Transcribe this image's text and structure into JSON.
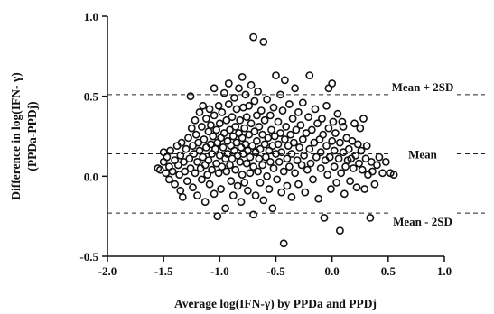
{
  "chart_data": {
    "type": "scatter",
    "title": "",
    "xlabel": "Average log(IFN-γ) by PPDa and PPDj",
    "ylabel_line1": "Difference in log(IFN- γ)",
    "ylabel_line2": "(PPDa-PPDj)",
    "xlim": [
      -2.0,
      1.0
    ],
    "ylim": [
      -0.5,
      1.0
    ],
    "xticks": [
      -2.0,
      -1.5,
      -1.0,
      -0.5,
      0.0,
      0.5,
      1.0
    ],
    "xtick_labels": [
      "-2.0",
      "-1.5",
      "-1.0",
      "-0.5",
      "0.0",
      "0.5",
      "1.0"
    ],
    "yticks": [
      -0.5,
      0.0,
      0.5,
      1.0
    ],
    "ytick_labels": [
      "-0.5",
      "0.0",
      "0.5",
      "1.0"
    ],
    "grid": false,
    "marker": "open-circle",
    "reference_lines": [
      {
        "label": "Mean + 2SD",
        "y": 0.51
      },
      {
        "label": "Mean",
        "y": 0.14
      },
      {
        "label": "Mean - 2SD",
        "y": -0.23
      }
    ],
    "points": [
      [
        -1.55,
        0.05
      ],
      [
        -1.53,
        0.04
      ],
      [
        -1.5,
        0.09
      ],
      [
        -1.5,
        0.15
      ],
      [
        -1.48,
        0.02
      ],
      [
        -1.47,
        0.12
      ],
      [
        -1.45,
        0.06
      ],
      [
        -1.45,
        -0.02
      ],
      [
        -1.44,
        0.16
      ],
      [
        -1.42,
        0.03
      ],
      [
        -1.4,
        0.1
      ],
      [
        -1.4,
        -0.05
      ],
      [
        -1.38,
        0.19
      ],
      [
        -1.37,
        0.07
      ],
      [
        -1.36,
        0.01
      ],
      [
        -1.35,
        0.13
      ],
      [
        -1.35,
        -0.09
      ],
      [
        -1.34,
        0.21
      ],
      [
        -1.33,
        -0.13
      ],
      [
        -1.32,
        0.09
      ],
      [
        -1.31,
        0.03
      ],
      [
        -1.3,
        0.17
      ],
      [
        -1.29,
        -0.03
      ],
      [
        -1.28,
        0.24
      ],
      [
        -1.27,
        0.11
      ],
      [
        -1.26,
        0.05
      ],
      [
        -1.26,
        0.5
      ],
      [
        -1.25,
        0.3
      ],
      [
        -1.24,
        0.19
      ],
      [
        -1.24,
        -0.07
      ],
      [
        -1.23,
        0.14
      ],
      [
        -1.22,
        0.02
      ],
      [
        -1.22,
        0.35
      ],
      [
        -1.21,
        0.26
      ],
      [
        -1.2,
        0.09
      ],
      [
        -1.2,
        -0.12
      ],
      [
        -1.19,
        0.21
      ],
      [
        -1.18,
        0.4
      ],
      [
        -1.18,
        0.16
      ],
      [
        -1.17,
        0.05
      ],
      [
        -1.16,
        0.31
      ],
      [
        -1.16,
        -0.02
      ],
      [
        -1.15,
        0.12
      ],
      [
        -1.15,
        0.44
      ],
      [
        -1.14,
        0.23
      ],
      [
        -1.13,
        0.07
      ],
      [
        -1.13,
        -0.16
      ],
      [
        -1.12,
        0.36
      ],
      [
        -1.12,
        0.18
      ],
      [
        -1.11,
        0.01
      ],
      [
        -1.1,
        0.28
      ],
      [
        -1.1,
        0.1
      ],
      [
        -1.09,
        0.42
      ],
      [
        -1.09,
        -0.05
      ],
      [
        -1.08,
        0.2
      ],
      [
        -1.08,
        0.32
      ],
      [
        -1.07,
        0.14
      ],
      [
        -1.07,
        0.04
      ],
      [
        -1.06,
        0.25
      ],
      [
        -1.05,
        -0.11
      ],
      [
        -1.05,
        0.38
      ],
      [
        -1.05,
        0.55
      ],
      [
        -1.04,
        0.17
      ],
      [
        -1.03,
        0.08
      ],
      [
        -1.03,
        0.29
      ],
      [
        -1.02,
        -0.25
      ],
      [
        -1.02,
        0.21
      ],
      [
        -1.01,
        0.44
      ],
      [
        -1.01,
        0.02
      ],
      [
        -1.0,
        0.13
      ],
      [
        -1.0,
        0.33
      ],
      [
        -0.99,
        0.24
      ],
      [
        -0.99,
        -0.08
      ],
      [
        -0.98,
        0.06
      ],
      [
        -0.98,
        0.4
      ],
      [
        -0.97,
        0.18
      ],
      [
        -0.96,
        0.27
      ],
      [
        -0.96,
        0.52
      ],
      [
        -0.95,
        0.11
      ],
      [
        -0.95,
        -0.2
      ],
      [
        -0.94,
        0.35
      ],
      [
        -0.94,
        0.03
      ],
      [
        -0.93,
        0.22
      ],
      [
        -0.93,
        0.14
      ],
      [
        -0.92,
        0.58
      ],
      [
        -0.92,
        0.45
      ],
      [
        -0.91,
        0.29
      ],
      [
        -0.91,
        0.07
      ],
      [
        -0.9,
        -0.03
      ],
      [
        -0.9,
        0.19
      ],
      [
        -0.89,
        0.37
      ],
      [
        -0.89,
        0.11
      ],
      [
        -0.88,
        0.25
      ],
      [
        -0.88,
        -0.12
      ],
      [
        -0.87,
        0.49
      ],
      [
        -0.87,
        0.16
      ],
      [
        -0.86,
        0.31
      ],
      [
        -0.86,
        0.04
      ],
      [
        -0.85,
        0.21
      ],
      [
        -0.85,
        0.42
      ],
      [
        -0.84,
        0.13
      ],
      [
        -0.84,
        -0.06
      ],
      [
        -0.83,
        0.27
      ],
      [
        -0.83,
        0.55
      ],
      [
        -0.82,
        0.09
      ],
      [
        -0.82,
        0.35
      ],
      [
        -0.81,
        0.18
      ],
      [
        -0.81,
        -0.16
      ],
      [
        -0.8,
        0.62
      ],
      [
        -0.8,
        0.24
      ],
      [
        -0.8,
        0.01
      ],
      [
        -0.79,
        0.43
      ],
      [
        -0.79,
        0.14
      ],
      [
        -0.78,
        0.3
      ],
      [
        -0.78,
        -0.04
      ],
      [
        -0.77,
        0.2
      ],
      [
        -0.77,
        0.51
      ],
      [
        -0.76,
        0.08
      ],
      [
        -0.76,
        0.37
      ],
      [
        -0.75,
        0.16
      ],
      [
        -0.75,
        -0.09
      ],
      [
        -0.74,
        0.26
      ],
      [
        -0.74,
        0.44
      ],
      [
        -0.73,
        0.12
      ],
      [
        -0.73,
        0.02
      ],
      [
        -0.72,
        0.33
      ],
      [
        -0.72,
        0.57
      ],
      [
        -0.71,
        0.19
      ],
      [
        -0.7,
        0.87
      ],
      [
        -0.7,
        -0.24
      ],
      [
        -0.7,
        0.06
      ],
      [
        -0.69,
        0.28
      ],
      [
        -0.69,
        0.47
      ],
      [
        -0.68,
        0.15
      ],
      [
        -0.68,
        -0.12
      ],
      [
        -0.67,
        0.38
      ],
      [
        -0.67,
        0.22
      ],
      [
        -0.66,
        0.03
      ],
      [
        -0.66,
        0.53
      ],
      [
        -0.65,
        0.11
      ],
      [
        -0.65,
        0.31
      ],
      [
        -0.64,
        -0.04
      ],
      [
        -0.64,
        0.17
      ],
      [
        -0.63,
        0.41
      ],
      [
        -0.62,
        0.26
      ],
      [
        -0.62,
        0.07
      ],
      [
        -0.61,
        0.84
      ],
      [
        -0.61,
        -0.15
      ],
      [
        -0.6,
        0.35
      ],
      [
        -0.6,
        0.2
      ],
      [
        -0.59,
        0.12
      ],
      [
        -0.58,
        0.48
      ],
      [
        -0.58,
        0.0
      ],
      [
        -0.57,
        0.24
      ],
      [
        -0.56,
        0.16
      ],
      [
        -0.56,
        -0.08
      ],
      [
        -0.55,
        0.38
      ],
      [
        -0.55,
        0.09
      ],
      [
        -0.54,
        0.29
      ],
      [
        -0.53,
        0.19
      ],
      [
        -0.53,
        -0.2
      ],
      [
        -0.52,
        0.43
      ],
      [
        -0.52,
        0.05
      ],
      [
        -0.51,
        0.25
      ],
      [
        -0.5,
        0.14
      ],
      [
        -0.5,
        0.63
      ],
      [
        -0.49,
        -0.02
      ],
      [
        -0.48,
        0.34
      ],
      [
        -0.48,
        0.2
      ],
      [
        -0.47,
        0.09
      ],
      [
        -0.46,
        0.51
      ],
      [
        -0.46,
        0.27
      ],
      [
        -0.45,
        -0.1
      ],
      [
        -0.45,
        0.15
      ],
      [
        -0.44,
        0.41
      ],
      [
        -0.43,
        -0.42
      ],
      [
        -0.43,
        0.03
      ],
      [
        -0.42,
        0.23
      ],
      [
        -0.42,
        0.6
      ],
      [
        -0.41,
        0.31
      ],
      [
        -0.4,
        0.11
      ],
      [
        -0.4,
        -0.06
      ],
      [
        -0.39,
        0.19
      ],
      [
        -0.38,
        0.45
      ],
      [
        -0.38,
        0.06
      ],
      [
        -0.37,
        0.26
      ],
      [
        -0.36,
        0.14
      ],
      [
        -0.36,
        -0.13
      ],
      [
        -0.35,
        0.36
      ],
      [
        -0.34,
        0.21
      ],
      [
        -0.33,
        0.02
      ],
      [
        -0.33,
        0.55
      ],
      [
        -0.32,
        0.29
      ],
      [
        -0.31,
        0.1
      ],
      [
        -0.3,
        0.4
      ],
      [
        -0.3,
        -0.05
      ],
      [
        -0.29,
        0.18
      ],
      [
        -0.28,
        0.32
      ],
      [
        -0.27,
        0.07
      ],
      [
        -0.26,
        0.23
      ],
      [
        -0.26,
        0.46
      ],
      [
        -0.25,
        0.13
      ],
      [
        -0.24,
        -0.1
      ],
      [
        -0.23,
        0.27
      ],
      [
        -0.22,
        0.04
      ],
      [
        -0.21,
        0.37
      ],
      [
        -0.2,
        0.17
      ],
      [
        -0.2,
        0.63
      ],
      [
        -0.19,
        0.08
      ],
      [
        -0.18,
        0.29
      ],
      [
        -0.17,
        -0.02
      ],
      [
        -0.16,
        0.21
      ],
      [
        -0.15,
        0.42
      ],
      [
        -0.14,
        0.12
      ],
      [
        -0.13,
        0.33
      ],
      [
        -0.12,
        -0.14
      ],
      [
        -0.11,
        0.23
      ],
      [
        -0.1,
        0.05
      ],
      [
        -0.1,
        0.15
      ],
      [
        -0.09,
        0.36
      ],
      [
        -0.08,
        0.26
      ],
      [
        -0.07,
        -0.26
      ],
      [
        -0.06,
        0.1
      ],
      [
        -0.05,
        0.44
      ],
      [
        -0.05,
        0.19
      ],
      [
        -0.04,
        0.01
      ],
      [
        -0.03,
        0.55
      ],
      [
        -0.03,
        0.3
      ],
      [
        -0.02,
        0.12
      ],
      [
        -0.01,
        -0.08
      ],
      [
        0.0,
        0.22
      ],
      [
        0.0,
        0.58
      ],
      [
        0.01,
        0.34
      ],
      [
        0.02,
        0.06
      ],
      [
        0.02,
        0.16
      ],
      [
        0.03,
        0.27
      ],
      [
        0.04,
        -0.04
      ],
      [
        0.05,
        0.39
      ],
      [
        0.06,
        0.11
      ],
      [
        0.07,
        -0.34
      ],
      [
        0.07,
        0.21
      ],
      [
        0.08,
        0.02
      ],
      [
        0.09,
        0.34
      ],
      [
        0.1,
        0.15
      ],
      [
        0.1,
        0.31
      ],
      [
        0.11,
        -0.11
      ],
      [
        0.12,
        0.06
      ],
      [
        0.13,
        0.24
      ],
      [
        0.14,
        0.1
      ],
      [
        0.15,
        0.17
      ],
      [
        0.16,
        -0.03
      ],
      [
        0.17,
        0.11
      ],
      [
        0.18,
        0.22
      ],
      [
        0.19,
        0.05
      ],
      [
        0.2,
        0.33
      ],
      [
        0.21,
        0.13
      ],
      [
        0.22,
        -0.07
      ],
      [
        0.23,
        0.2
      ],
      [
        0.24,
        0.08
      ],
      [
        0.25,
        0.3
      ],
      [
        0.26,
        0.16
      ],
      [
        0.27,
        0.04
      ],
      [
        0.28,
        0.36
      ],
      [
        0.29,
        -0.08
      ],
      [
        0.3,
        0.11
      ],
      [
        0.31,
        0.19
      ],
      [
        0.32,
        0.01
      ],
      [
        0.34,
        -0.26
      ],
      [
        0.35,
        0.09
      ],
      [
        0.36,
        0.03
      ],
      [
        0.38,
        -0.05
      ],
      [
        0.4,
        0.07
      ],
      [
        0.42,
        0.12
      ],
      [
        0.45,
        0.02
      ],
      [
        0.48,
        0.09
      ],
      [
        0.52,
        0.02
      ],
      [
        0.55,
        0.01
      ]
    ]
  }
}
